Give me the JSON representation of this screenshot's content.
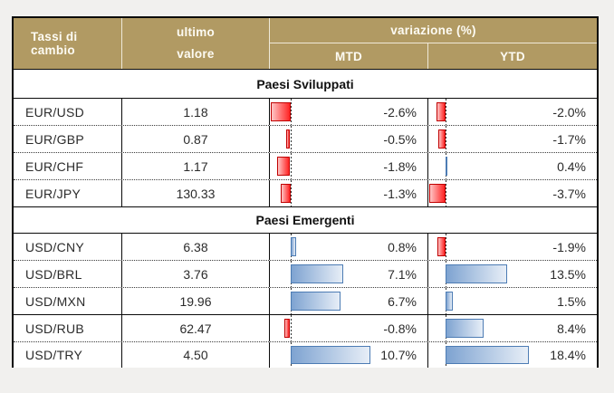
{
  "colors": {
    "header_gold": "#b19a63",
    "header_text": "#fdfbf3",
    "negative_bar_border": "#c00000",
    "negative_bar_fill": "#ff2323",
    "positive_bar_border": "#4d7cb4",
    "positive_bar_fill": "#7ea3d1",
    "grid_line": "#0a0a0a"
  },
  "header": {
    "pair_col": "Tassi di cambio",
    "value_col_line1": "ultimo",
    "value_col_line2": "valore",
    "variation_col": "variazione (%)",
    "mtd_col": "MTD",
    "ytd_col": "YTD"
  },
  "chart_data": {
    "type": "table",
    "title": "Tassi di cambio",
    "columns": [
      "Tassi di cambio",
      "ultimo valore",
      "variazione (%) MTD",
      "variazione (%) YTD"
    ],
    "bar_style": "excel-data-bars, red negative / blue positive, dashed zero axis, per-column scale",
    "sections": [
      {
        "label": "Paesi Sviluppati",
        "rows": [
          {
            "pair": "EUR/USD",
            "value": "1.18",
            "mtd": -2.6,
            "ytd": -2.0,
            "mtd_label": "-2.6%",
            "ytd_label": "-2.0%"
          },
          {
            "pair": "EUR/GBP",
            "value": "0.87",
            "mtd": -0.5,
            "ytd": -1.7,
            "mtd_label": "-0.5%",
            "ytd_label": "-1.7%"
          },
          {
            "pair": "EUR/CHF",
            "value": "1.17",
            "mtd": -1.8,
            "ytd": 0.4,
            "mtd_label": "-1.8%",
            "ytd_label": "0.4%"
          },
          {
            "pair": "EUR/JPY",
            "value": "130.33",
            "mtd": -1.3,
            "ytd": -3.7,
            "mtd_label": "-1.3%",
            "ytd_label": "-3.7%"
          }
        ]
      },
      {
        "label": "Paesi Emergenti",
        "rows": [
          {
            "pair": "USD/CNY",
            "value": "6.38",
            "mtd": 0.8,
            "ytd": -1.9,
            "mtd_label": "0.8%",
            "ytd_label": "-1.9%"
          },
          {
            "pair": "USD/BRL",
            "value": "3.76",
            "mtd": 7.1,
            "ytd": 13.5,
            "mtd_label": "7.1%",
            "ytd_label": "13.5%"
          },
          {
            "pair": "USD/MXN",
            "value": "19.96",
            "mtd": 6.7,
            "ytd": 1.5,
            "mtd_label": "6.7%",
            "ytd_label": "1.5%"
          },
          {
            "pair": "USD/RUB",
            "value": "62.47",
            "mtd": -0.8,
            "ytd": 8.4,
            "mtd_label": "-0.8%",
            "ytd_label": "8.4%"
          },
          {
            "pair": "USD/TRY",
            "value": "4.50",
            "mtd": 10.7,
            "ytd": 18.4,
            "mtd_label": "10.7%",
            "ytd_label": "18.4%"
          }
        ]
      }
    ]
  }
}
